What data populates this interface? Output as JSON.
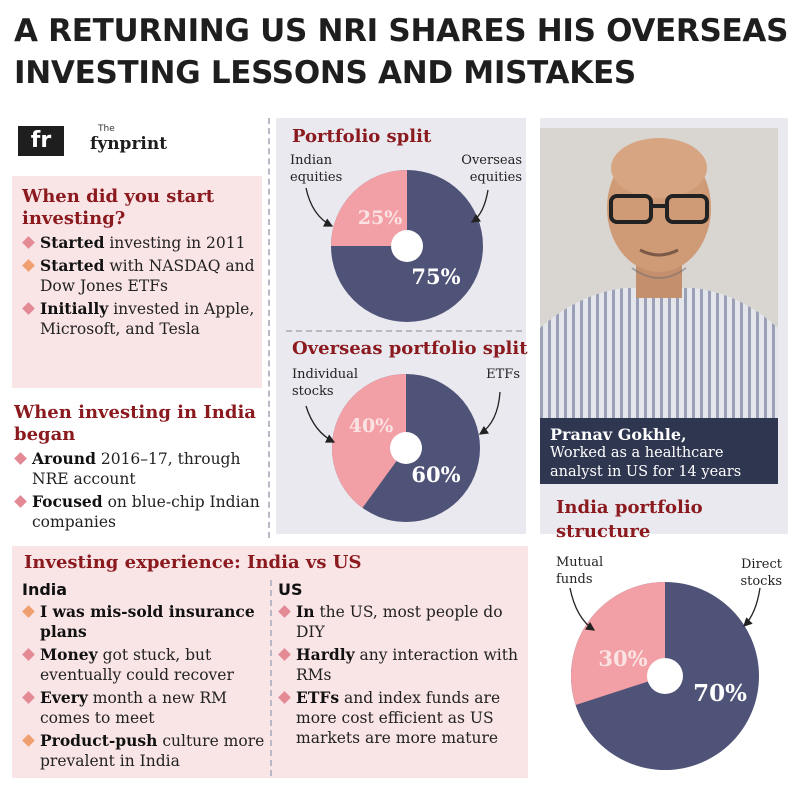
{
  "headline": {
    "line1": "A RETURNING US NRI SHARES HIS OVERSEAS",
    "line2": "INVESTING LESSONS AND MISTAKES"
  },
  "logo": {
    "mark": "fr",
    "the": "The",
    "brand": "fynprint"
  },
  "start": {
    "title": "When did you start investing?",
    "items": [
      {
        "bold": "Started",
        "rest": " investing in 2011"
      },
      {
        "bold": "Started",
        "rest": " with NASDAQ and Dow Jones ETFs"
      },
      {
        "bold": "Initially",
        "rest": " invested in Apple, Microsoft, and Tesla"
      }
    ]
  },
  "india_began": {
    "title": "When investing in India began",
    "items": [
      {
        "bold": "Around",
        "rest": " 2016–17, through NRE account"
      },
      {
        "bold": "Focused",
        "rest": " on blue-chip Indian companies"
      }
    ]
  },
  "experience": {
    "title": "Investing experience: India vs US",
    "india_head": "India",
    "us_head": "US",
    "india_items": [
      {
        "bold": "I was mis-sold insurance plans",
        "rest": ""
      },
      {
        "bold": "Money",
        "rest": " got stuck, but eventually could recover"
      },
      {
        "bold": "Every",
        "rest": " month a new RM comes to meet"
      },
      {
        "bold": "Product-push",
        "rest": " culture more prevalent in India"
      }
    ],
    "us_items": [
      {
        "bold": "In",
        "rest": " the US, most people do DIY"
      },
      {
        "bold": "Hardly",
        "rest": " any interaction with RMs"
      },
      {
        "bold": "ETFs",
        "rest": " and index funds are more cost efficient as US markets are more mature"
      }
    ]
  },
  "caption": {
    "name": "Pranav Gokhle,",
    "desc": "Worked as a healthcare analyst in US for 14 years"
  },
  "colors": {
    "navy": "#505378",
    "pink": "#f2a0a6",
    "accent": "#8b1a1f"
  },
  "chart_data": [
    {
      "type": "pie",
      "title": "Portfolio split",
      "labels": [
        "Indian equities",
        "Overseas equities"
      ],
      "values": [
        25,
        75
      ],
      "value_labels": [
        "25%",
        "75%"
      ]
    },
    {
      "type": "pie",
      "title": "Overseas portfolio split",
      "labels": [
        "Individual stocks",
        "ETFs"
      ],
      "values": [
        40,
        60
      ],
      "value_labels": [
        "40%",
        "60%"
      ]
    },
    {
      "type": "pie",
      "title": "India portfolio structure",
      "labels": [
        "Mutual funds",
        "Direct stocks"
      ],
      "values": [
        30,
        70
      ],
      "value_labels": [
        "30%",
        "70%"
      ]
    }
  ]
}
